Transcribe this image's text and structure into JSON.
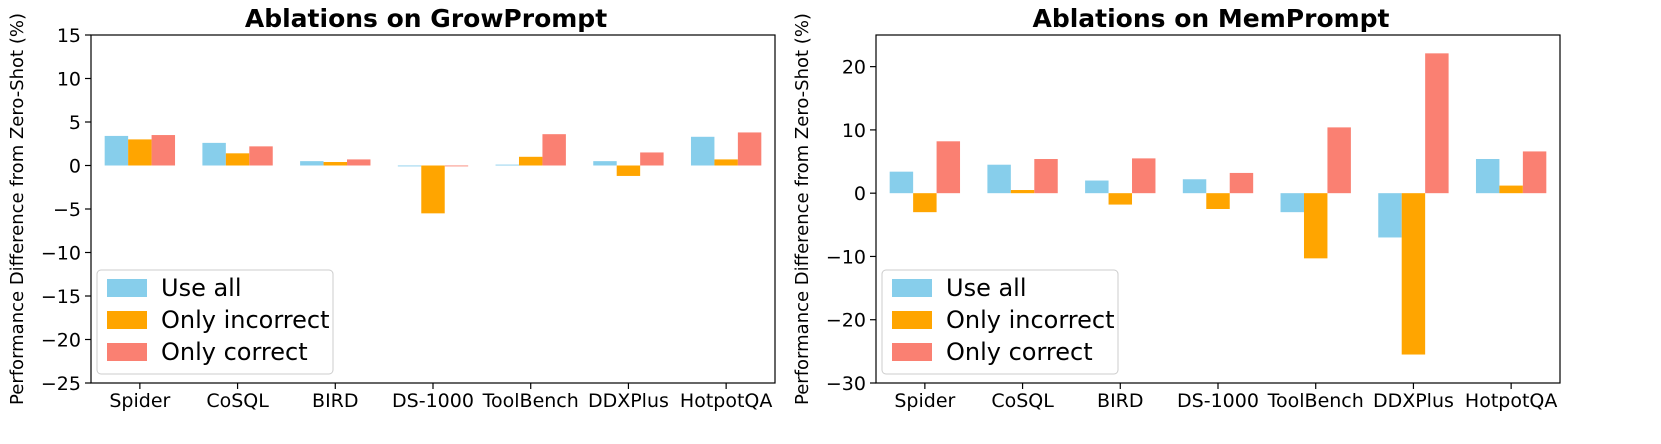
{
  "chart_data": [
    {
      "type": "bar",
      "title": "Ablations on GrowPrompt",
      "ylabel": "Performance Difference from Zero-Shot (%)",
      "xlabel": "",
      "categories": [
        "Spider",
        "CoSQL",
        "BIRD",
        "DS-1000",
        "ToolBench",
        "DDXPlus",
        "HotpotQA"
      ],
      "ylim": [
        -25,
        15
      ],
      "yticks": [
        -25,
        -20,
        -15,
        -10,
        -5,
        0,
        5,
        10,
        15
      ],
      "series": [
        {
          "name": "Use all",
          "color": "#87CEEB",
          "values": [
            3.4,
            2.6,
            0.5,
            -0.1,
            0.1,
            0.5,
            3.3
          ]
        },
        {
          "name": "Only incorrect",
          "color": "#FFA500",
          "values": [
            3.0,
            1.4,
            0.4,
            -5.5,
            1.0,
            -1.2,
            0.7
          ]
        },
        {
          "name": "Only correct",
          "color": "#FA8072",
          "values": [
            3.5,
            2.2,
            0.7,
            -0.1,
            3.6,
            1.5,
            3.8
          ]
        }
      ],
      "legend": "lower-left",
      "grid": false
    },
    {
      "type": "bar",
      "title": "Ablations on MemPrompt",
      "ylabel": "Performance Difference from Zero-Shot (%)",
      "xlabel": "",
      "categories": [
        "Spider",
        "CoSQL",
        "BIRD",
        "DS-1000",
        "ToolBench",
        "DDXPlus",
        "HotpotQA"
      ],
      "ylim": [
        -30,
        25
      ],
      "yticks": [
        -30,
        -20,
        -10,
        0,
        10,
        20
      ],
      "series": [
        {
          "name": "Use all",
          "color": "#87CEEB",
          "values": [
            3.4,
            4.5,
            2.0,
            2.2,
            -3.0,
            -7.0,
            5.4
          ]
        },
        {
          "name": "Only incorrect",
          "color": "#FFA500",
          "values": [
            -3.0,
            0.5,
            -1.8,
            -2.5,
            -10.3,
            -25.5,
            1.2
          ]
        },
        {
          "name": "Only correct",
          "color": "#FA8072",
          "values": [
            8.2,
            5.4,
            5.5,
            3.2,
            10.4,
            22.1,
            6.6
          ]
        }
      ],
      "legend": "lower-left",
      "grid": false
    }
  ]
}
